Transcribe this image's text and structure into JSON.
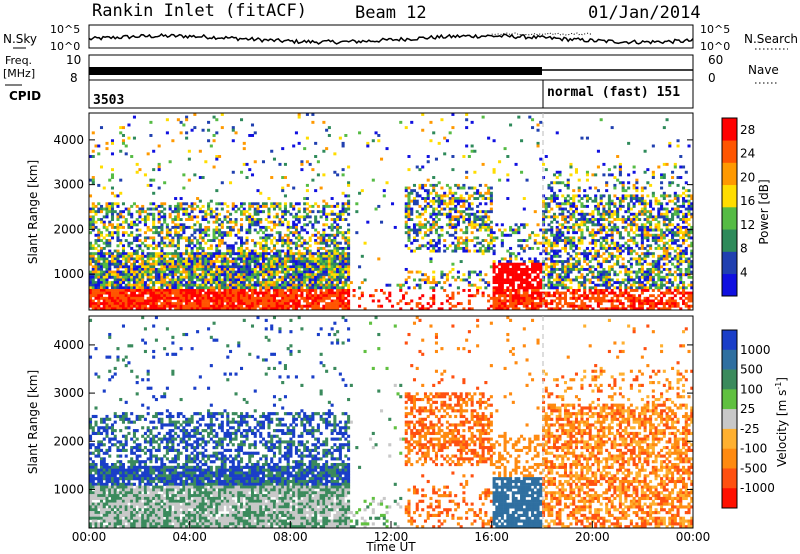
{
  "header": {
    "station": "Rankin Inlet (fitACF)",
    "beam": "Beam 12",
    "date": "01/Jan/2014"
  },
  "panels_top": {
    "nsky_label": "N.Sky",
    "nsearch_label": "N.Search",
    "nsky_ticks": [
      "10^5",
      "10^0"
    ],
    "nsearch_ticks": [
      "10^5",
      "10^0"
    ],
    "freq_label": "Freq.",
    "freq_unit": "[MHz]",
    "freq_ticks": [
      "10",
      "8"
    ],
    "nave_label": "Nave",
    "nave_ticks": [
      "60",
      "0"
    ],
    "cpid_label": "CPID",
    "cpid_left": "3503",
    "cpid_right": "normal (fast) 151"
  },
  "colors": {
    "power_scale": [
      "#1010e0",
      "#2040b0",
      "#2e8a5a",
      "#55bb44",
      "#ffdd00",
      "#ff9900",
      "#ff5500",
      "#ff0000"
    ],
    "velocity_scale": [
      "#1a3ec8",
      "#2f6fa0",
      "#3a8a5c",
      "#60c040",
      "#c8c8c8",
      "#ffb030",
      "#ff8a10",
      "#ff5010",
      "#ff1000"
    ]
  },
  "chart_data": [
    {
      "type": "heatmap",
      "name": "power",
      "ylabel": "Slant Range [km]",
      "xlabel": "",
      "yticks": [
        "1000",
        "2000",
        "3000",
        "4000"
      ],
      "ylim": [
        200,
        4600
      ],
      "colorbar_label": "Power [dB]",
      "colorbar_ticks": [
        "4",
        "8",
        "12",
        "16",
        "20",
        "24",
        "28"
      ],
      "clim": [
        0,
        30
      ]
    },
    {
      "type": "heatmap",
      "name": "velocity",
      "ylabel": "Slant Range [km]",
      "xlabel": "Time UT",
      "xticks": [
        "00:00",
        "04:00",
        "08:00",
        "12:00",
        "16:00",
        "20:00",
        "00:00"
      ],
      "xlim": [
        0,
        24
      ],
      "yticks": [
        "1000",
        "2000",
        "3000",
        "4000"
      ],
      "ylim": [
        200,
        4600
      ],
      "colorbar_label": "Velocity [m s",
      "colorbar_label_sup": "-1",
      "colorbar_label_end": "]",
      "colorbar_ticks": [
        "1000",
        "500",
        "100",
        "25",
        "-25",
        "-100",
        "-500",
        "-1000"
      ]
    }
  ]
}
